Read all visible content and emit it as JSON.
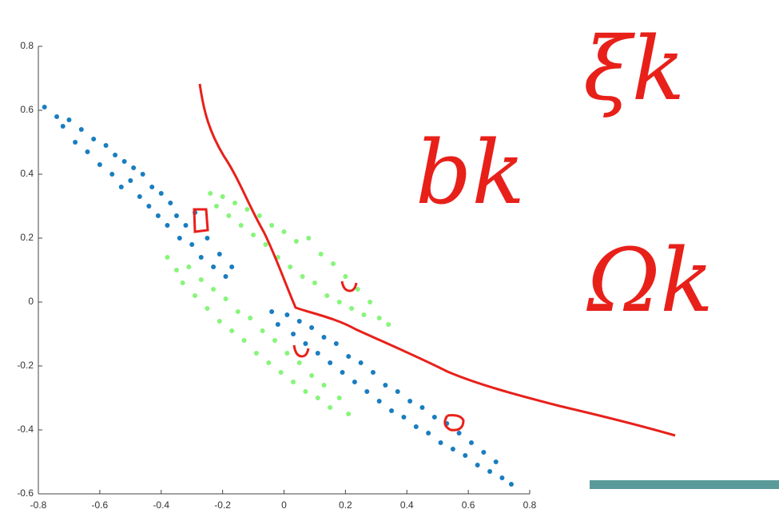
{
  "chart_data": {
    "type": "scatter",
    "xlim": [
      -0.8,
      0.8
    ],
    "xticks": [
      -0.8,
      -0.6,
      -0.4,
      -0.2,
      0,
      0.2,
      0.4,
      0.6,
      0.8
    ],
    "ylim": [
      -0.6,
      0.8
    ],
    "yticks": [
      -0.6,
      -0.4,
      -0.2,
      0,
      0.2,
      0.4,
      0.6,
      0.8
    ],
    "annotations": [
      "ξk",
      "bk",
      "Ωk"
    ],
    "series": [
      {
        "color": "#1a7dbf",
        "x": [
          -0.78,
          -0.74,
          -0.72,
          -0.7,
          -0.68,
          -0.66,
          -0.64,
          -0.62,
          -0.6,
          -0.58,
          -0.56,
          -0.55,
          -0.53,
          -0.52,
          -0.5,
          -0.49,
          -0.47,
          -0.46,
          -0.44,
          -0.43,
          -0.41,
          -0.4,
          -0.38,
          -0.37,
          -0.35,
          -0.34,
          -0.32,
          -0.3,
          -0.29,
          -0.27,
          -0.25,
          -0.23,
          -0.21,
          -0.19,
          -0.17,
          -0.04,
          -0.02,
          0.01,
          0.03,
          0.05,
          0.07,
          0.09,
          0.11,
          0.13,
          0.15,
          0.17,
          0.19,
          0.21,
          0.23,
          0.25,
          0.27,
          0.29,
          0.31,
          0.33,
          0.35,
          0.37,
          0.39,
          0.41,
          0.43,
          0.45,
          0.47,
          0.49,
          0.51,
          0.53,
          0.55,
          0.57,
          0.59,
          0.61,
          0.63,
          0.65,
          0.67,
          0.69,
          0.71,
          0.74
        ],
        "values": [
          0.61,
          0.58,
          0.55,
          0.57,
          0.5,
          0.54,
          0.47,
          0.51,
          0.43,
          0.49,
          0.4,
          0.46,
          0.36,
          0.44,
          0.38,
          0.42,
          0.33,
          0.4,
          0.3,
          0.36,
          0.27,
          0.34,
          0.24,
          0.31,
          0.27,
          0.2,
          0.24,
          0.18,
          0.28,
          0.14,
          0.2,
          0.11,
          0.15,
          0.08,
          0.11,
          -0.03,
          -0.07,
          -0.04,
          -0.1,
          -0.06,
          -0.13,
          -0.08,
          -0.16,
          -0.11,
          -0.19,
          -0.13,
          -0.22,
          -0.17,
          -0.25,
          -0.19,
          -0.28,
          -0.22,
          -0.31,
          -0.26,
          -0.34,
          -0.28,
          -0.36,
          -0.31,
          -0.39,
          -0.33,
          -0.41,
          -0.36,
          -0.44,
          -0.38,
          -0.46,
          -0.41,
          -0.48,
          -0.44,
          -0.51,
          -0.47,
          -0.53,
          -0.5,
          -0.55,
          -0.57
        ]
      },
      {
        "color": "#86f57a",
        "x": [
          -0.24,
          -0.22,
          -0.2,
          -0.18,
          -0.16,
          -0.14,
          -0.12,
          -0.1,
          -0.08,
          -0.06,
          -0.04,
          -0.02,
          0.0,
          0.02,
          0.04,
          0.06,
          0.08,
          0.1,
          0.12,
          0.14,
          0.16,
          0.18,
          0.2,
          0.22,
          0.24,
          0.26,
          0.28,
          0.31,
          0.34,
          -0.38,
          -0.35,
          -0.33,
          -0.31,
          -0.29,
          -0.27,
          -0.25,
          -0.23,
          -0.21,
          -0.19,
          -0.17,
          -0.15,
          -0.13,
          -0.11,
          -0.09,
          -0.07,
          -0.05,
          -0.03,
          -0.01,
          0.01,
          0.03,
          0.05,
          0.07,
          0.09,
          0.11,
          0.13,
          0.15,
          0.18,
          0.21
        ],
        "values": [
          0.34,
          0.3,
          0.33,
          0.27,
          0.31,
          0.24,
          0.29,
          0.21,
          0.27,
          0.18,
          0.24,
          0.14,
          0.22,
          0.11,
          0.19,
          0.08,
          0.2,
          0.06,
          0.15,
          0.02,
          0.12,
          0.0,
          0.08,
          -0.02,
          0.04,
          -0.04,
          0.0,
          -0.05,
          -0.07,
          0.14,
          0.1,
          0.06,
          0.11,
          0.02,
          0.07,
          -0.02,
          0.04,
          -0.06,
          0.01,
          -0.09,
          -0.03,
          -0.12,
          -0.05,
          -0.16,
          -0.09,
          -0.19,
          -0.12,
          -0.22,
          -0.16,
          -0.25,
          -0.19,
          -0.28,
          -0.23,
          -0.3,
          -0.26,
          -0.33,
          -0.3,
          -0.35
        ]
      }
    ]
  }
}
